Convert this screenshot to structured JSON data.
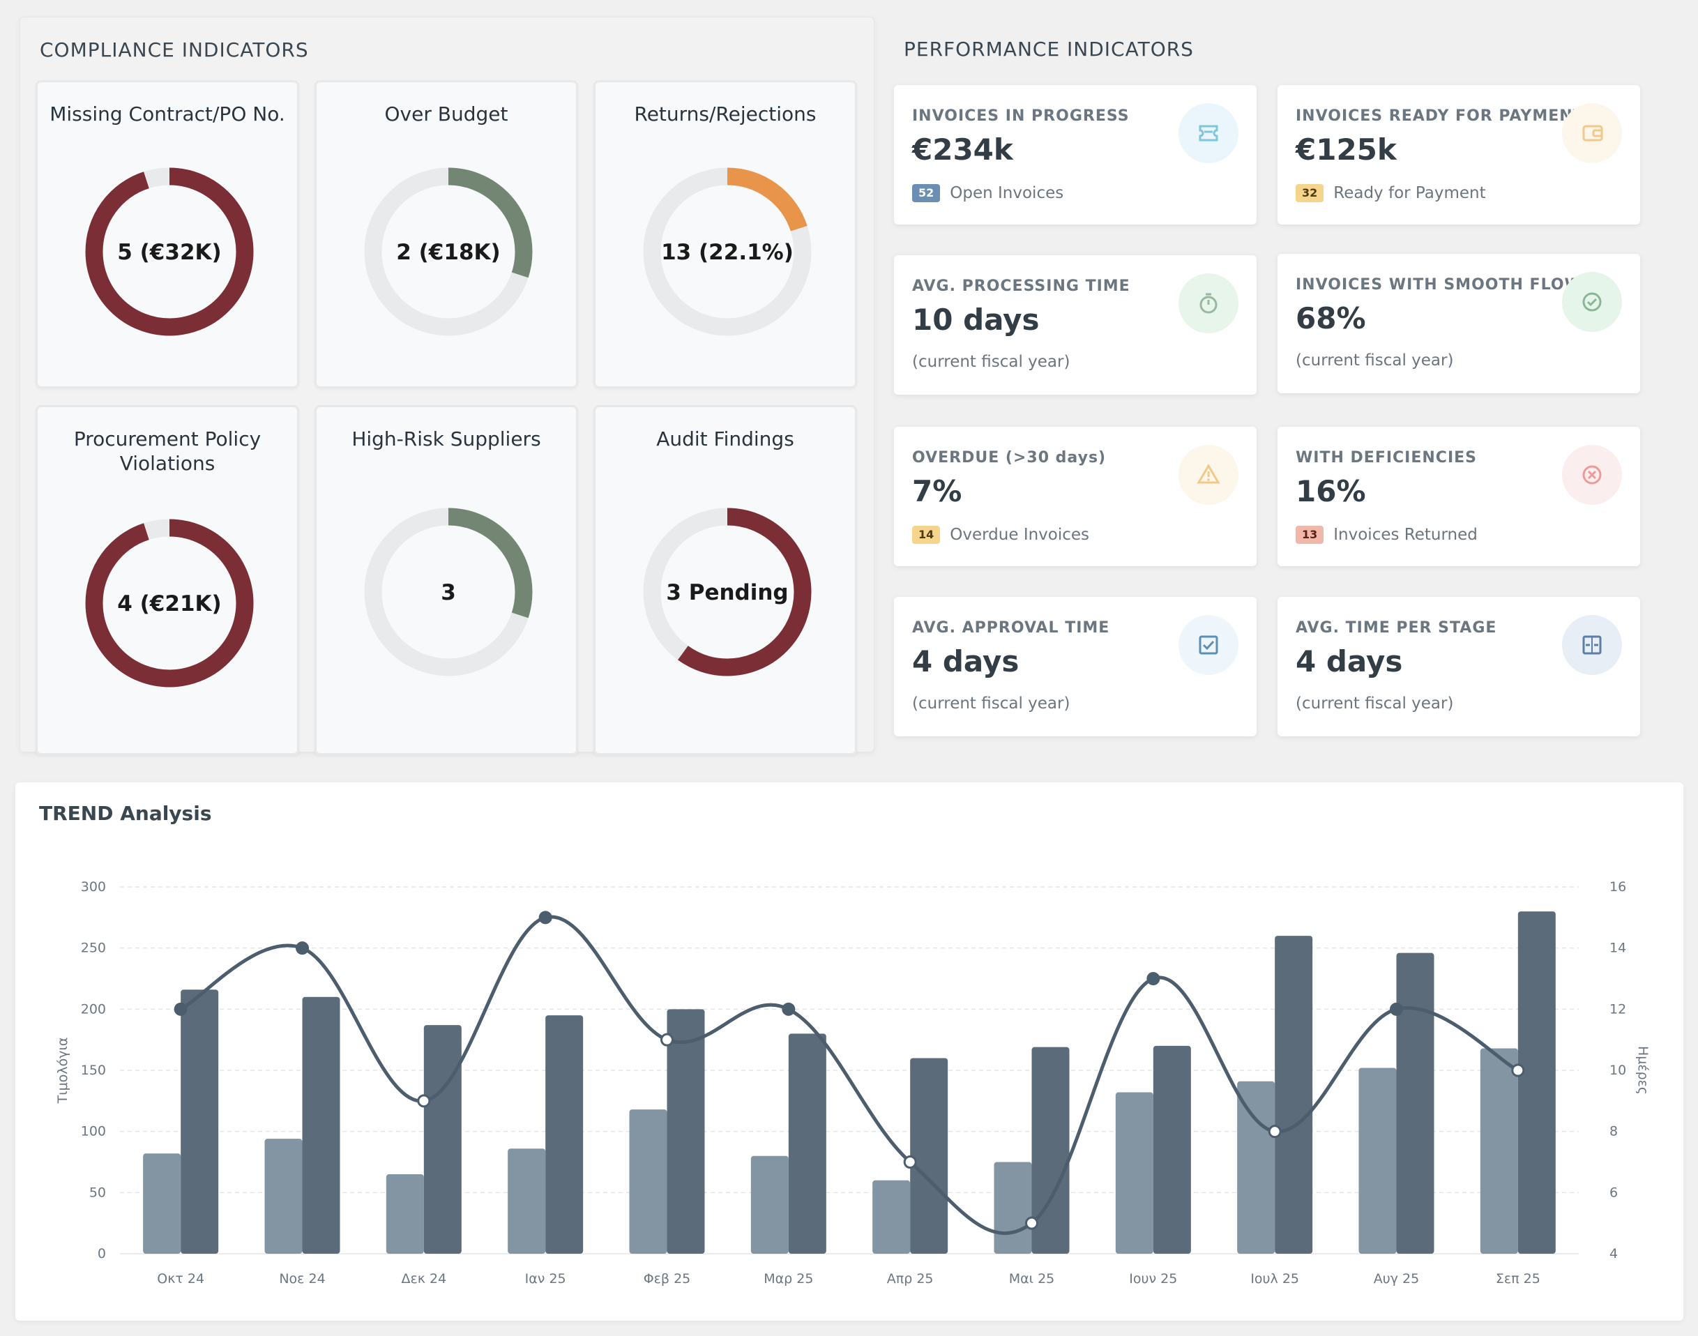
{
  "compliance": {
    "title": "COMPLIANCE INDICATORS",
    "cards": [
      {
        "title": "Missing Contract/PO No.",
        "value": "5 (€32K)",
        "fraction": 0.95,
        "color": "#7b2e36"
      },
      {
        "title": "Over Budget",
        "value": "2 (€18K)",
        "fraction": 0.3,
        "color": "#738673"
      },
      {
        "title": "Returns/Rejections",
        "value": "13 (22.1%)",
        "fraction": 0.2,
        "color": "#e8944a"
      },
      {
        "title": "Procurement Policy Violations",
        "value": "4 (€21K)",
        "fraction": 0.95,
        "color": "#7b2e36"
      },
      {
        "title": "High-Risk Suppliers",
        "value": "3",
        "fraction": 0.3,
        "color": "#738673"
      },
      {
        "title": "Audit Findings",
        "value": "3 Pending",
        "fraction": 0.6,
        "color": "#7b2e36"
      }
    ]
  },
  "performance": {
    "title": "PERFORMANCE INDICATORS",
    "cards": [
      {
        "label": "INVOICES IN PROGRESS",
        "value": "€234k",
        "badge": "52",
        "sub": "Open Invoices",
        "badge_bg": "#6b8fb3",
        "badge_fg": "#ffffff",
        "icon": "ticket-icon",
        "icon_bg": "#eaf6fb",
        "icon_color": "#7cc6e0"
      },
      {
        "label": "INVOICES READY FOR PAYMENT",
        "value": "€125k",
        "badge": "32",
        "sub": "Ready for Payment",
        "badge_bg": "#f5d58c",
        "badge_fg": "#4a3b10",
        "icon": "wallet-icon",
        "icon_bg": "#fdf6ea",
        "icon_color": "#f2c98a"
      },
      {
        "label": "AVG. PROCESSING TIME",
        "value": "10 days",
        "badge": "",
        "sub": "(current fiscal year)",
        "icon": "stopwatch-icon",
        "icon_bg": "#e7f5ea",
        "icon_color": "#9ab8a0"
      },
      {
        "label": "INVOICES WITH SMOOTH FLOW",
        "value": "68%",
        "badge": "",
        "sub": "(current fiscal year)",
        "icon": "check-circle-icon",
        "icon_bg": "#e6f5ea",
        "icon_color": "#8bb597"
      },
      {
        "label": "OVERDUE (>30 days)",
        "value": "7%",
        "badge": "14",
        "sub": "Overdue Invoices",
        "badge_bg": "#f5d58c",
        "badge_fg": "#4a3b10",
        "icon": "warning-icon",
        "icon_bg": "#fdf6ea",
        "icon_color": "#f2c98a"
      },
      {
        "label": "WITH DEFICIENCIES",
        "value": "16%",
        "badge": "13",
        "sub": "Invoices Returned",
        "badge_bg": "#f0b8aa",
        "badge_fg": "#5a1f14",
        "icon": "x-circle-icon",
        "icon_bg": "#fbeeee",
        "icon_color": "#ef9a9a"
      },
      {
        "label": "AVG. APPROVAL TIME",
        "value": "4 days",
        "badge": "",
        "sub": "(current fiscal year)",
        "icon": "checkbox-icon",
        "icon_bg": "#eef6fb",
        "icon_color": "#5b8fb8"
      },
      {
        "label": "AVG. TIME PER STAGE",
        "value": "4 days",
        "badge": "",
        "sub": "(current fiscal year)",
        "icon": "stages-icon",
        "icon_bg": "#e7eef5",
        "icon_color": "#5b7fa6"
      }
    ]
  },
  "trend": {
    "title": "TREND Analysis"
  },
  "chart_data": {
    "type": "bar",
    "categories": [
      "Οκτ 24",
      "Νοε 24",
      "Δεκ 24",
      "Ιαν 25",
      "Φεβ 25",
      "Μαρ 25",
      "Απρ 25",
      "Μαι 25",
      "Ιουν 25",
      "Ιουλ 25",
      "Αυγ 25",
      "Σεπ 25"
    ],
    "series": [
      {
        "type": "bar",
        "axis": "left",
        "color": "#8394a2",
        "values": [
          82,
          94,
          65,
          86,
          118,
          80,
          60,
          75,
          132,
          141,
          152,
          168
        ]
      },
      {
        "type": "bar",
        "axis": "left",
        "color": "#5b6b7a",
        "values": [
          216,
          210,
          187,
          195,
          200,
          180,
          160,
          169,
          170,
          260,
          246,
          280
        ]
      },
      {
        "type": "line",
        "axis": "right",
        "color": "#4c5e6e",
        "values": [
          12,
          14,
          9,
          15,
          11,
          12,
          7,
          5,
          13,
          8,
          12,
          10
        ]
      }
    ],
    "ylabel": "Τιμολόγια",
    "y2label": "Ημέρες",
    "ylim": [
      0,
      300
    ],
    "y2lim": [
      4,
      16
    ],
    "yticks": [
      0,
      50,
      100,
      150,
      200,
      250,
      300
    ],
    "y2ticks": [
      4,
      6,
      8,
      10,
      12,
      14,
      16
    ],
    "grid": true
  }
}
